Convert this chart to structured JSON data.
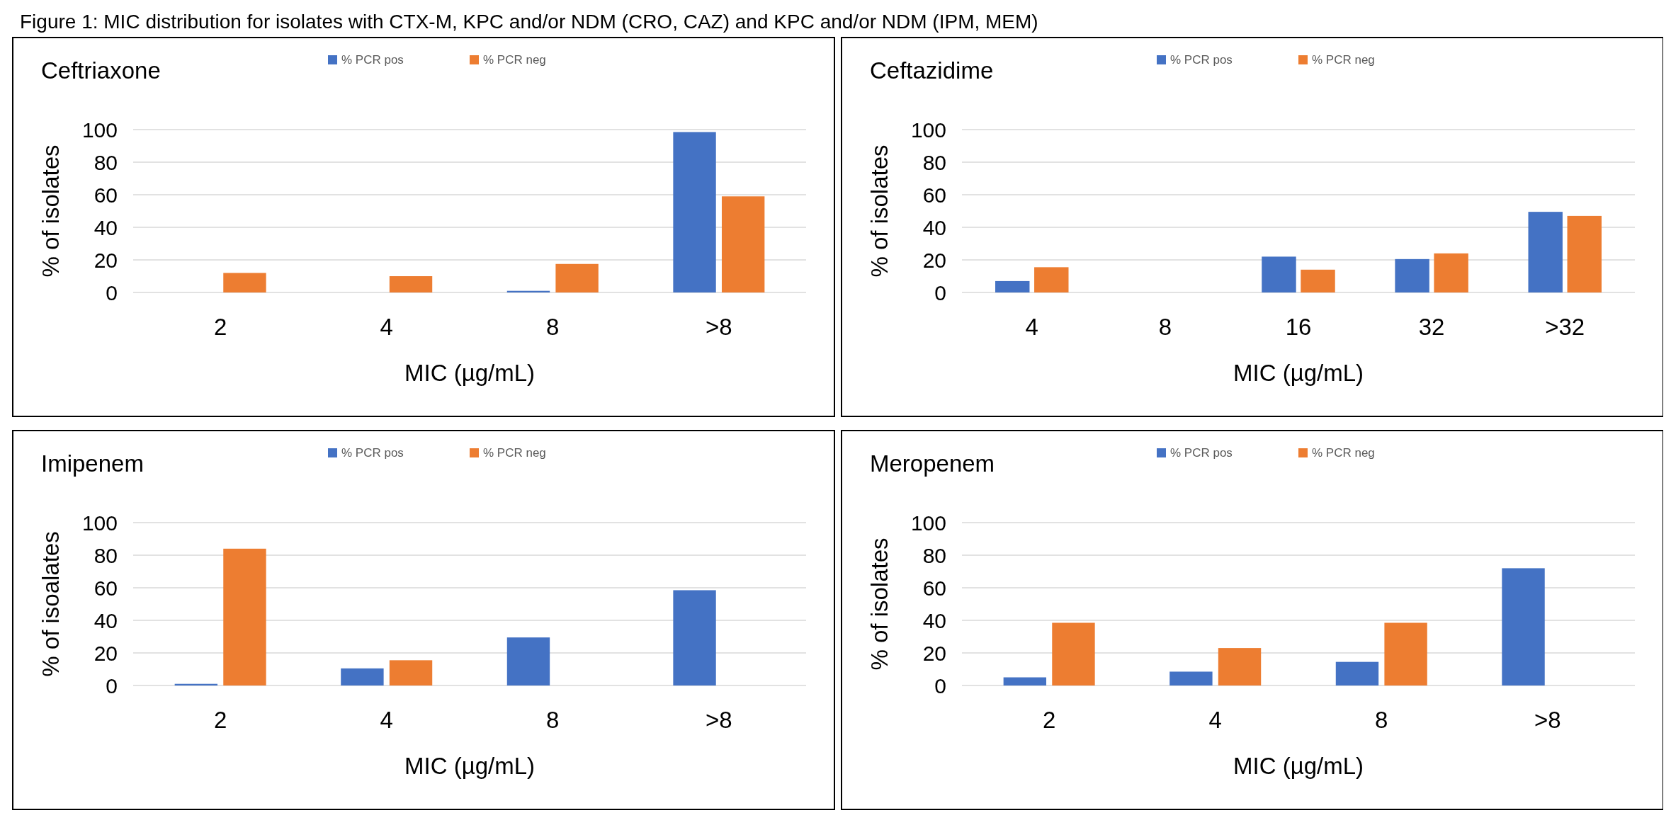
{
  "chart_data": [
    {
      "type": "bar",
      "title": "Ceftriaxone",
      "annotations": [
        "Figure 1: MIC distribution for isolates with CTX-M, KPC and/or NDM (CRO, CAZ) and KPC and/or NDM (IPM, MEM)"
      ],
      "xlabel": "MIC (µg/mL)",
      "ylabel": "% of isolates",
      "categories": [
        "2",
        "4",
        "8",
        ">8"
      ],
      "series": [
        {
          "name": "% PCR pos",
          "color": "#4472c4",
          "values": [
            0,
            0,
            1,
            98.5
          ]
        },
        {
          "name": "% PCR neg",
          "color": "#ed7d31",
          "values": [
            12,
            10,
            17.5,
            59
          ]
        }
      ],
      "ylim": [
        0,
        100
      ],
      "yticks": [
        0,
        20,
        40,
        60,
        80,
        100
      ],
      "grid": "y",
      "legend": "top"
    },
    {
      "type": "bar",
      "title": "Ceftazidime",
      "xlabel": "MIC (µg/mL)",
      "ylabel": "% of isolates",
      "categories": [
        "4",
        "8",
        "16",
        "32",
        ">32"
      ],
      "series": [
        {
          "name": "% PCR pos",
          "color": "#4472c4",
          "values": [
            7,
            0,
            22,
            20.5,
            49.5
          ]
        },
        {
          "name": "% PCR neg",
          "color": "#ed7d31",
          "values": [
            15.5,
            0,
            14,
            24,
            47
          ]
        }
      ],
      "ylim": [
        0,
        100
      ],
      "yticks": [
        0,
        20,
        40,
        60,
        80,
        100
      ],
      "grid": "y",
      "legend": "top"
    },
    {
      "type": "bar",
      "title": "Imipenem",
      "xlabel": "MIC (µg/mL)",
      "ylabel": "% of isoalates",
      "categories": [
        "2",
        "4",
        "8",
        ">8"
      ],
      "series": [
        {
          "name": "% PCR pos",
          "color": "#4472c4",
          "values": [
            1,
            10.5,
            29.5,
            58.5
          ]
        },
        {
          "name": "% PCR neg",
          "color": "#ed7d31",
          "values": [
            84,
            15.5,
            0,
            0
          ]
        }
      ],
      "ylim": [
        0,
        100
      ],
      "yticks": [
        0,
        20,
        40,
        60,
        80,
        100
      ],
      "grid": "y",
      "legend": "top"
    },
    {
      "type": "bar",
      "title": "Meropenem",
      "xlabel": "MIC (µg/mL)",
      "ylabel": "% of isolates",
      "categories": [
        "2",
        "4",
        "8",
        ">8"
      ],
      "series": [
        {
          "name": "% PCR pos",
          "color": "#4472c4",
          "values": [
            5,
            8.5,
            14.5,
            72
          ]
        },
        {
          "name": "% PCR neg",
          "color": "#ed7d31",
          "values": [
            38.5,
            23,
            38.5,
            0
          ]
        }
      ],
      "ylim": [
        0,
        100
      ],
      "yticks": [
        0,
        20,
        40,
        60,
        80,
        100
      ],
      "grid": "y",
      "legend": "top"
    }
  ]
}
